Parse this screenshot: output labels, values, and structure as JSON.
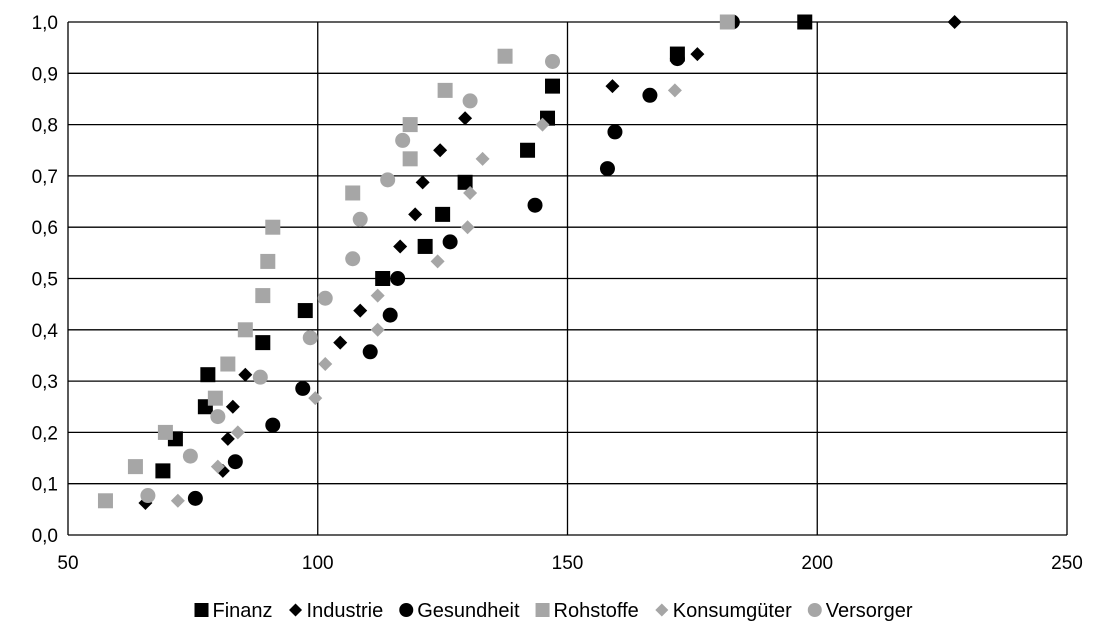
{
  "chart_data": {
    "type": "scatter",
    "xlim": [
      50,
      250
    ],
    "ylim": [
      0,
      1
    ],
    "x_ticks": [
      "50",
      "100",
      "150",
      "200",
      "250"
    ],
    "x_tick_values": [
      50,
      100,
      150,
      200,
      250
    ],
    "y_ticks": [
      "0,0",
      "0,1",
      "0,2",
      "0,3",
      "0,4",
      "0,5",
      "0,6",
      "0,7",
      "0,8",
      "0,9",
      "1,0"
    ],
    "y_tick_values": [
      0,
      0.1,
      0.2,
      0.3,
      0.4,
      0.5,
      0.6,
      0.7,
      0.8,
      0.9,
      1.0
    ],
    "grid": true,
    "legend_position": "bottom",
    "series": [
      {
        "name": "Finanz",
        "marker": "square",
        "color": "#000000",
        "points": [
          [
            69,
            0.125
          ],
          [
            71.5,
            0.1875
          ],
          [
            77.5,
            0.25
          ],
          [
            78,
            0.3125
          ],
          [
            89,
            0.375
          ],
          [
            97.5,
            0.4375
          ],
          [
            113,
            0.5
          ],
          [
            121.5,
            0.5625
          ],
          [
            125,
            0.625
          ],
          [
            129.5,
            0.6875
          ],
          [
            142,
            0.75
          ],
          [
            146,
            0.8125
          ],
          [
            147,
            0.875
          ],
          [
            172,
            0.9375
          ],
          [
            197.5,
            1.0
          ]
        ]
      },
      {
        "name": "Industrie",
        "marker": "diamond",
        "color": "#000000",
        "points": [
          [
            65.5,
            0.0625
          ],
          [
            81,
            0.125
          ],
          [
            82,
            0.1875
          ],
          [
            83,
            0.25
          ],
          [
            85.5,
            0.3125
          ],
          [
            104.5,
            0.375
          ],
          [
            108.5,
            0.4375
          ],
          [
            116.5,
            0.5625
          ],
          [
            119.5,
            0.625
          ],
          [
            121,
            0.6875
          ],
          [
            124.5,
            0.75
          ],
          [
            129.5,
            0.8125
          ],
          [
            159,
            0.875
          ],
          [
            176,
            0.9375
          ],
          [
            227.5,
            1.0
          ]
        ]
      },
      {
        "name": "Gesundheit",
        "marker": "circle",
        "color": "#000000",
        "points": [
          [
            75.5,
            0.0714
          ],
          [
            83.5,
            0.1429
          ],
          [
            91,
            0.2143
          ],
          [
            97,
            0.2857
          ],
          [
            110.5,
            0.3571
          ],
          [
            114.5,
            0.4286
          ],
          [
            116,
            0.5
          ],
          [
            126.5,
            0.5714
          ],
          [
            143.5,
            0.6429
          ],
          [
            158,
            0.7143
          ],
          [
            159.5,
            0.7857
          ],
          [
            166.5,
            0.8571
          ],
          [
            172,
            0.9286
          ],
          [
            183,
            1.0
          ]
        ]
      },
      {
        "name": "Rohstoffe",
        "marker": "square",
        "color": "#a6a6a6",
        "points": [
          [
            57.5,
            0.0667
          ],
          [
            63.5,
            0.1333
          ],
          [
            69.5,
            0.2
          ],
          [
            79.5,
            0.2667
          ],
          [
            82,
            0.3333
          ],
          [
            85.5,
            0.4
          ],
          [
            89,
            0.4667
          ],
          [
            90,
            0.5333
          ],
          [
            91,
            0.6
          ],
          [
            107,
            0.6667
          ],
          [
            118.5,
            0.7333
          ],
          [
            118.5,
            0.8
          ],
          [
            125.5,
            0.8667
          ],
          [
            137.5,
            0.9333
          ],
          [
            182,
            1.0
          ]
        ]
      },
      {
        "name": "Konsumgüter",
        "marker": "diamond",
        "color": "#a6a6a6",
        "points": [
          [
            72,
            0.0667
          ],
          [
            80,
            0.1333
          ],
          [
            84,
            0.2
          ],
          [
            99.5,
            0.2667
          ],
          [
            101.5,
            0.3333
          ],
          [
            112,
            0.4
          ],
          [
            112,
            0.4667
          ],
          [
            124,
            0.5333
          ],
          [
            130,
            0.6
          ],
          [
            130.5,
            0.6667
          ],
          [
            133,
            0.7333
          ],
          [
            145,
            0.8
          ],
          [
            171.5,
            0.8667
          ]
        ]
      },
      {
        "name": "Versorger",
        "marker": "circle",
        "color": "#a6a6a6",
        "points": [
          [
            66,
            0.0769
          ],
          [
            74.5,
            0.1538
          ],
          [
            80,
            0.2308
          ],
          [
            88.5,
            0.3077
          ],
          [
            98.5,
            0.3846
          ],
          [
            101.5,
            0.4615
          ],
          [
            107,
            0.5385
          ],
          [
            108.5,
            0.6154
          ],
          [
            114,
            0.6923
          ],
          [
            117,
            0.7692
          ],
          [
            130.5,
            0.8462
          ],
          [
            147,
            0.9231
          ]
        ]
      }
    ]
  }
}
